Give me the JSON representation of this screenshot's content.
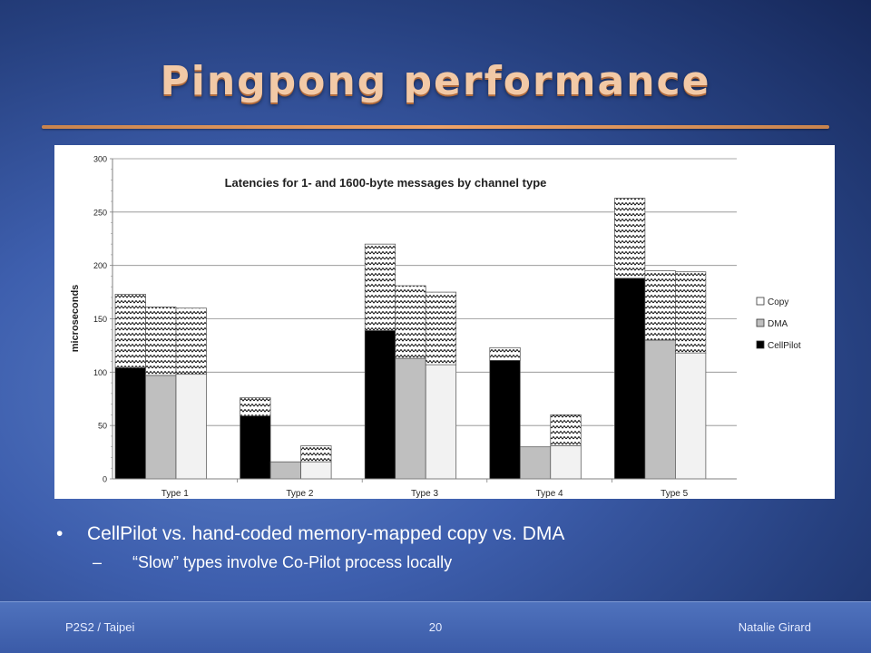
{
  "slide": {
    "title": "Pingpong performance",
    "bullets": [
      {
        "text": "CellPilot vs. hand-coded memory-mapped  copy vs. DMA"
      },
      {
        "text": "“Slow” types involve Co-Pilot process locally"
      }
    ],
    "footer": {
      "left": "P2S2 / Taipei",
      "center": "20",
      "right": "Natalie Girard"
    }
  },
  "chart_data": {
    "type": "bar",
    "stacked": true,
    "title": "Latencies for 1- and 1600-byte messages by channel type",
    "ylabel": "microseconds",
    "xlabel": "",
    "ylim": [
      0,
      300
    ],
    "yticks": [
      0,
      50,
      100,
      150,
      200,
      250,
      300
    ],
    "grid": true,
    "legend_position": "right",
    "categories": [
      "Type 1",
      "Type 2",
      "Type 3",
      "Type 4",
      "Type 5"
    ],
    "legend": [
      "Copy",
      "DMA",
      "CellPilot"
    ],
    "groups": [
      "CellPilot",
      "DMA",
      "Copy"
    ],
    "colors": {
      "CellPilot": "#000000",
      "DMA": "#bfbfbf",
      "Copy": "#f2f2f2",
      "zigzag": "#000000"
    },
    "series": [
      {
        "name": "CellPilot",
        "base": [
          104,
          59,
          139,
          111,
          188
        ],
        "total": [
          173,
          76,
          220,
          123,
          263
        ]
      },
      {
        "name": "DMA",
        "base": [
          97,
          16,
          113,
          30,
          130
        ],
        "total": [
          161,
          16,
          181,
          30,
          195
        ]
      },
      {
        "name": "Copy",
        "base": [
          98,
          16,
          107,
          31,
          118
        ],
        "total": [
          160,
          31,
          175,
          60,
          194
        ]
      }
    ]
  }
}
